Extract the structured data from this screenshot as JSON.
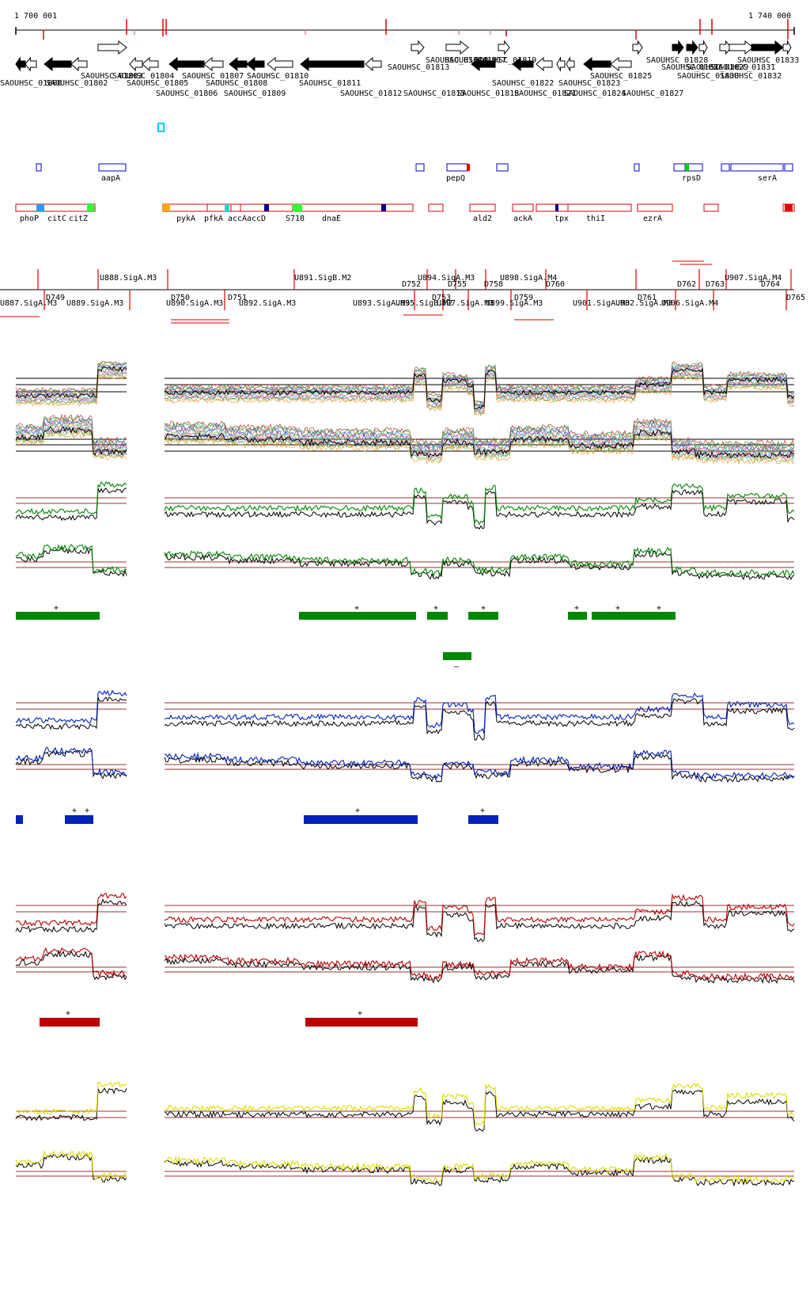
{
  "coordinates": {
    "start": "1 700 001",
    "end": "1 740 000"
  },
  "colors": {
    "axis": "#000000",
    "feature_red": "#e00000",
    "box_blue": "#0000cc",
    "cyan": "#00ccff",
    "green": "#008800",
    "blue": "#0022bb",
    "red": "#bb0000",
    "yellow": "#dddd00",
    "threshold": "#993333",
    "black_trace": "#000000"
  },
  "genes_top": [
    "SAOUHSC_01813",
    "SAOUHSC_01814",
    "SAOUHSC_01817",
    "SAOUHSC_01819",
    "SAOUHSC_01828",
    "SAOUHSC_01833",
    "SAOUHSC_01826",
    "SAOUHSC_01829",
    "SAOUHSC_01831"
  ],
  "genes_bottom1": [
    "SAOUHSC_01800",
    "SAOUHSC_01802",
    "SAOUHSC_01803",
    "SAOUHSC_01804",
    "SAOUHSC_01805",
    "SAOUHSC_01807",
    "SAOUHSC_01808",
    "SAOUHSC_01810",
    "SAOUHSC_01811",
    "SAOUHSC_01822",
    "SAOUHSC_01823",
    "SAOUHSC_01825",
    "SAOUHSC_01830",
    "SAOUHSC_01832"
  ],
  "genes_bottom2": [
    "SAOUHSC_01806",
    "SAOUHSC_01809",
    "SAOUHSC_01812",
    "SAOUHSC_01815",
    "SAOUHSC_01818",
    "SAOUHSC_01821",
    "SAOUHSC_01824",
    "SAOUHSC_01827"
  ],
  "blue_box_labels": [
    "aapA",
    "pepQ",
    "rpsD",
    "serA"
  ],
  "red_box_labels": [
    "phoP",
    "citC",
    "citZ",
    "pykA",
    "pfkA",
    "accA",
    "accD",
    "S718",
    "dnaE",
    "ald2",
    "ackA",
    "tpx",
    "thiI",
    "ezrA"
  ],
  "segment_labels_upper": [
    "U888.SigA.M3",
    "U891.SigB.M2",
    "D752",
    "U894.SigA.M3",
    "D755",
    "D758",
    "U898.SigA.M4",
    "D760",
    "D762",
    "D763",
    "U907.SigA.M4",
    "D764"
  ],
  "segment_labels_lower": [
    "U887.SigA.M3",
    "D749",
    "U889.SigA.M3",
    "D750",
    "U890.SigA.M3",
    "D751",
    "U892.SigA.M3",
    "U893.SigA.M3",
    "D753",
    "U895.SigB.M2",
    "U897.SigA.M3",
    "U899.SigA.M3",
    "D759",
    "U901.SigA.M3",
    "U902.SigA.M3",
    "D761",
    "U906.SigA.M4",
    "D765"
  ],
  "green_bar_marks": [
    "+",
    "+",
    "+",
    "+",
    "+",
    "+",
    "+",
    "–"
  ],
  "blue_bar_marks": [
    "+",
    "+",
    "+",
    "+"
  ],
  "red_bar_marks": [
    "+",
    "+"
  ]
}
